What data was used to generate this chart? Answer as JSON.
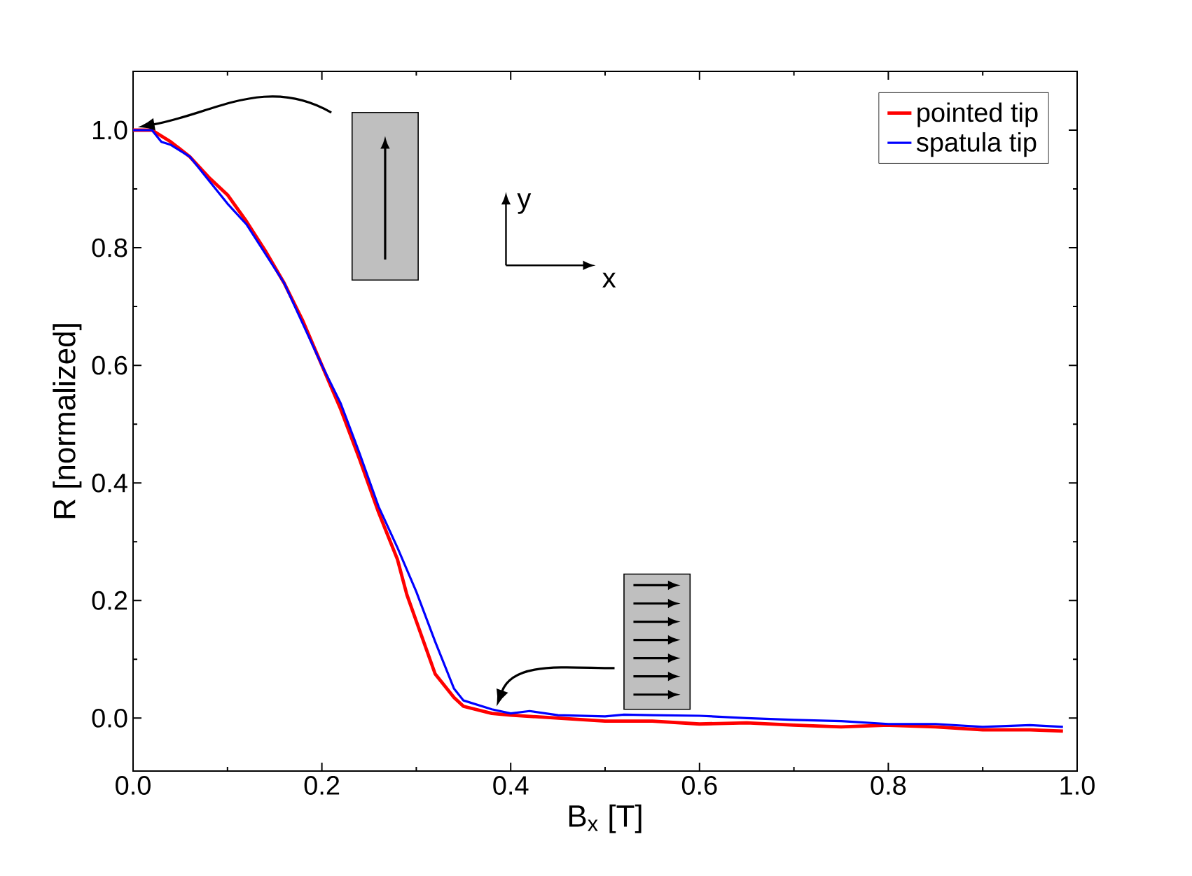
{
  "chart_data": {
    "type": "line",
    "xlabel": "B$_{x}$ [T]",
    "ylabel": "R [normalized]",
    "xlim": [
      0,
      1
    ],
    "ylim": [
      -0.09,
      1.1
    ],
    "xticks": [
      {
        "value": 0,
        "label": "0.0"
      },
      0.2,
      0.4,
      0.6,
      0.8,
      {
        "value": 1,
        "label": "1.0"
      }
    ],
    "yticks": [
      {
        "value": 0,
        "label": "0.0"
      },
      0.2,
      0.4,
      0.6,
      0.8,
      {
        "value": 1,
        "label": "1.0"
      }
    ],
    "legend": "top right",
    "grid": false,
    "annotations": [
      "y",
      "x"
    ],
    "series": [
      {
        "name": "pointed tip",
        "color": "#ff0000",
        "x": [
          0,
          0.02,
          0.04,
          0.06,
          0.08,
          0.1,
          0.12,
          0.14,
          0.16,
          0.18,
          0.2,
          0.22,
          0.24,
          0.26,
          0.28,
          0.29,
          0.3,
          0.32,
          0.34,
          0.35,
          0.38,
          0.4,
          0.45,
          0.5,
          0.55,
          0.6,
          0.65,
          0.7,
          0.75,
          0.8,
          0.85,
          0.9,
          0.95,
          0.985
        ],
        "values": [
          1.0,
          1.0,
          0.98,
          0.955,
          0.92,
          0.89,
          0.845,
          0.795,
          0.74,
          0.675,
          0.6,
          0.525,
          0.44,
          0.35,
          0.27,
          0.21,
          0.165,
          0.075,
          0.035,
          0.02,
          0.008,
          0.005,
          0.0,
          -0.005,
          -0.005,
          -0.01,
          -0.008,
          -0.012,
          -0.015,
          -0.012,
          -0.015,
          -0.02,
          -0.02,
          -0.022
        ]
      },
      {
        "name": "spatula tip",
        "color": "#0000ff",
        "x": [
          0,
          0.02,
          0.03,
          0.04,
          0.06,
          0.08,
          0.1,
          0.12,
          0.14,
          0.16,
          0.18,
          0.2,
          0.22,
          0.24,
          0.26,
          0.28,
          0.3,
          0.32,
          0.34,
          0.35,
          0.38,
          0.4,
          0.42,
          0.45,
          0.5,
          0.52,
          0.55,
          0.6,
          0.65,
          0.7,
          0.75,
          0.8,
          0.85,
          0.9,
          0.95,
          0.985
        ],
        "values": [
          1.0,
          1.0,
          0.98,
          0.975,
          0.955,
          0.915,
          0.875,
          0.84,
          0.79,
          0.74,
          0.67,
          0.6,
          0.535,
          0.45,
          0.36,
          0.29,
          0.215,
          0.13,
          0.05,
          0.03,
          0.015,
          0.008,
          0.012,
          0.005,
          0.003,
          0.006,
          0.005,
          0.004,
          0.0,
          -0.003,
          -0.005,
          -0.01,
          -0.01,
          -0.015,
          -0.012,
          -0.015
        ]
      }
    ]
  }
}
